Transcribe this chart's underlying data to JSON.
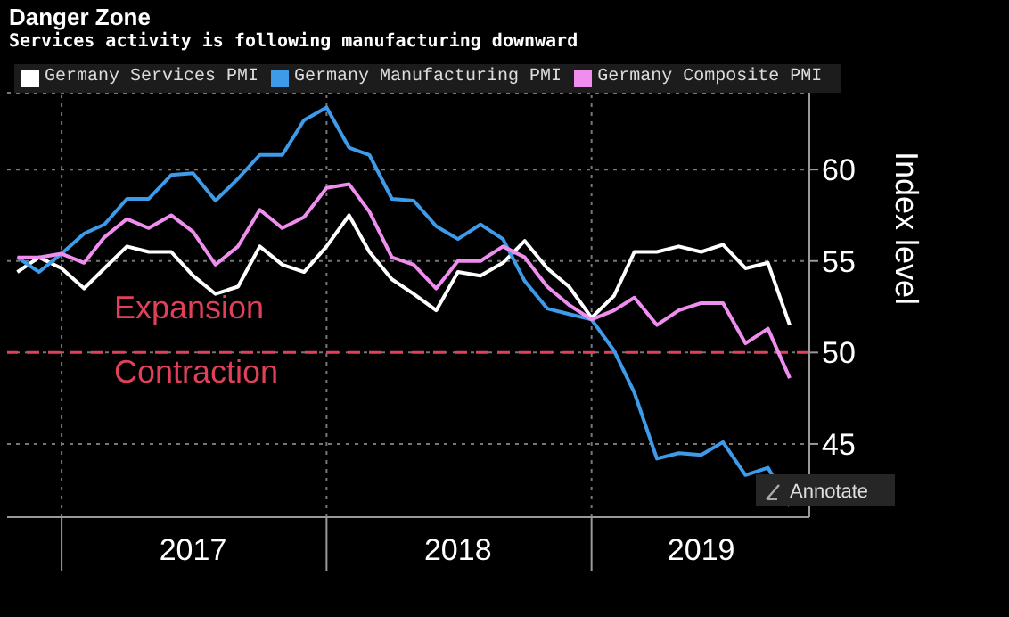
{
  "chart_data": {
    "type": "line",
    "title": "Danger Zone",
    "subtitle": "Services activity is following manufacturing downward",
    "ylabel": "Index level",
    "x": [
      "2016-11",
      "2016-12",
      "2017-01",
      "2017-02",
      "2017-03",
      "2017-04",
      "2017-05",
      "2017-06",
      "2017-07",
      "2017-08",
      "2017-09",
      "2017-10",
      "2017-11",
      "2017-12",
      "2018-01",
      "2018-02",
      "2018-03",
      "2018-04",
      "2018-05",
      "2018-06",
      "2018-07",
      "2018-08",
      "2018-09",
      "2018-10",
      "2018-11",
      "2018-12",
      "2019-01",
      "2019-02",
      "2019-03",
      "2019-04",
      "2019-05",
      "2019-06",
      "2019-07",
      "2019-08",
      "2019-09",
      "2019-10"
    ],
    "series": [
      {
        "name": "Germany Services PMI",
        "color": "#ffffff",
        "values": [
          54.4,
          55.2,
          54.6,
          53.5,
          54.6,
          55.8,
          55.5,
          55.5,
          54.2,
          53.2,
          53.6,
          55.8,
          54.8,
          54.4,
          55.8,
          57.5,
          55.5,
          54.0,
          53.2,
          52.3,
          54.4,
          54.2,
          54.9,
          56.1,
          54.6,
          53.6,
          51.9,
          53.1,
          55.5,
          55.5,
          55.8,
          55.5,
          55.9,
          54.6,
          54.9,
          51.5
        ]
      },
      {
        "name": "Germany Manufacturing PMI",
        "color": "#3d9be9",
        "values": [
          55.2,
          54.4,
          55.4,
          56.5,
          57.0,
          58.4,
          58.4,
          59.7,
          59.8,
          58.3,
          59.5,
          60.8,
          60.8,
          62.7,
          63.4,
          61.2,
          60.8,
          58.4,
          58.3,
          56.9,
          56.2,
          57.0,
          56.2,
          53.9,
          52.4,
          52.1,
          51.8,
          50.1,
          47.8,
          44.2,
          44.5,
          44.4,
          45.1,
          43.3,
          43.7,
          41.6
        ]
      },
      {
        "name": "Germany Composite PMI",
        "color": "#f08ef0",
        "values": [
          55.2,
          55.2,
          55.4,
          54.9,
          56.3,
          57.3,
          56.8,
          57.5,
          56.6,
          54.8,
          55.8,
          57.8,
          56.8,
          57.4,
          59.0,
          59.2,
          57.7,
          55.2,
          54.8,
          53.5,
          55.0,
          55.0,
          55.8,
          55.2,
          53.6,
          52.6,
          51.8,
          52.3,
          53.0,
          51.5,
          52.3,
          52.7,
          52.7,
          50.5,
          51.3,
          48.6
        ]
      }
    ],
    "xlim": [
      "2016-10-18",
      "2019-10-28"
    ],
    "xticks": [
      {
        "value": "2017-01-01",
        "label": null
      },
      {
        "value": "2017-07-01",
        "label": "2017"
      },
      {
        "value": "2018-01-01",
        "label": null
      },
      {
        "value": "2018-07-01",
        "label": "2018"
      },
      {
        "value": "2019-01-01",
        "label": null
      },
      {
        "value": "2019-06-01",
        "label": "2019"
      }
    ],
    "ylim": [
      41,
      64.2
    ],
    "yticks": [
      45,
      50,
      55,
      60
    ],
    "ref_lines": [
      {
        "axis": "y",
        "value": 50,
        "color": "#e0405a",
        "line_style": "dashed"
      }
    ],
    "annotations": [
      "Expansion",
      "Contraction",
      "Annotate"
    ],
    "grid": true,
    "legend": "top left",
    "marker": "none",
    "line_style": "solid"
  }
}
